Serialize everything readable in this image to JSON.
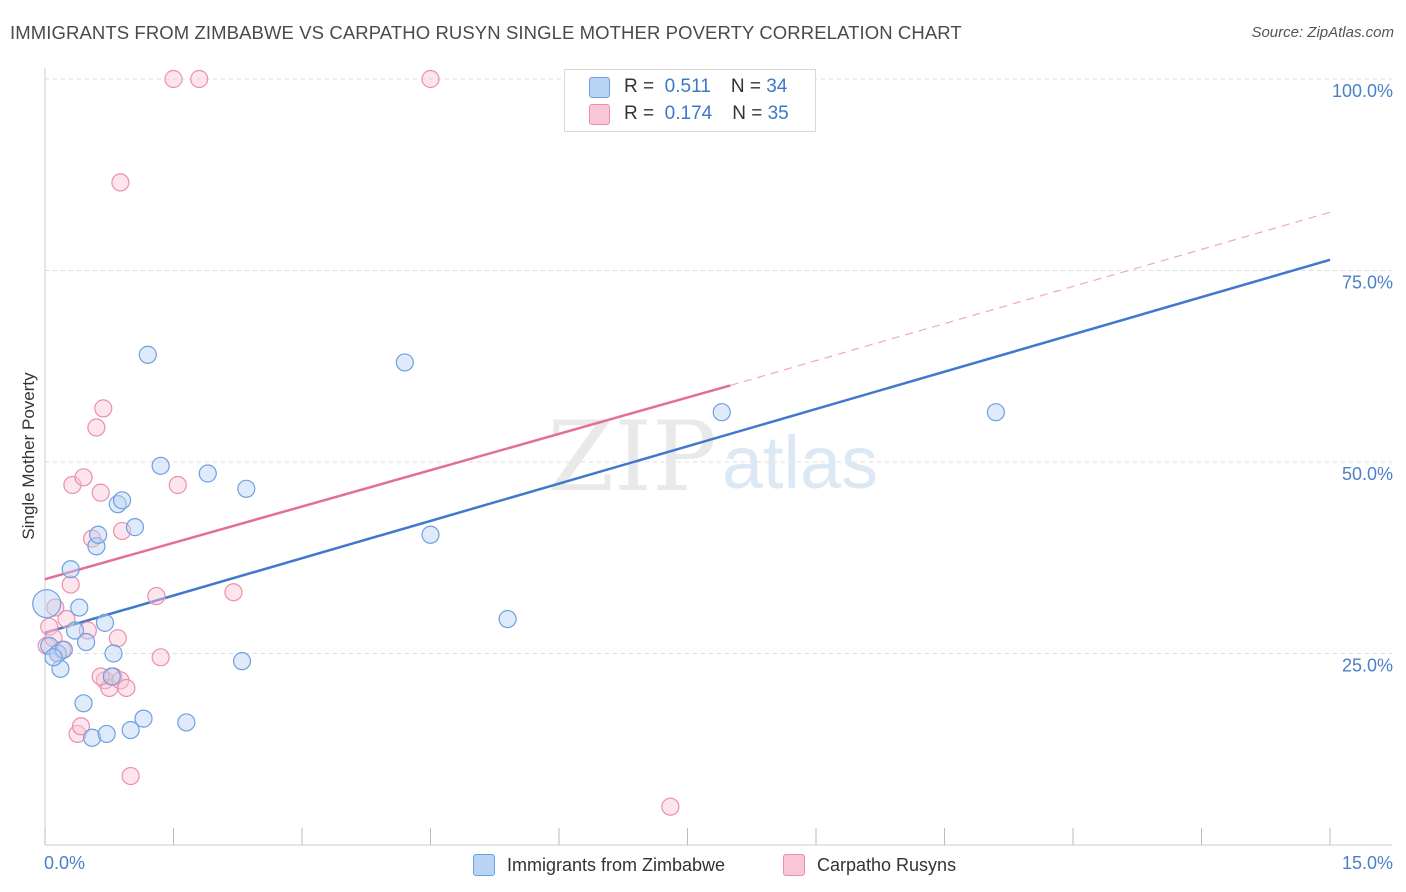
{
  "title": "IMMIGRANTS FROM ZIMBABWE VS CARPATHO RUSYN SINGLE MOTHER POVERTY CORRELATION CHART",
  "source": "Source: ZipAtlas.com",
  "watermark": {
    "zip": "ZIP",
    "atlas": "atlas"
  },
  "legend": {
    "r_label": "R =",
    "n_label": "N =",
    "series": [
      {
        "name": "Immigrants from Zimbabwe",
        "r": "0.511",
        "n": "34",
        "fill": "#b8d3f4",
        "stroke": "#6fa0df"
      },
      {
        "name": "Carpatho Rusyns",
        "r": "0.174",
        "n": "35",
        "fill": "#f8c6d4",
        "stroke": "#ec8fab"
      }
    ]
  },
  "colors": {
    "blue_line": "#3f78cc",
    "pink_line": "#e26f96",
    "axis_text": "#4a7fc9",
    "grid": "#dddddd"
  },
  "chart_data": {
    "type": "scatter",
    "title": "IMMIGRANTS FROM ZIMBABWE VS CARPATHO RUSYN SINGLE MOTHER POVERTY CORRELATION CHART",
    "xlabel": "",
    "ylabel": "Single Mother Poverty",
    "xlim": [
      0,
      15
    ],
    "ylim": [
      0,
      100
    ],
    "x_tick_labels": [
      "0.0%",
      "15.0%"
    ],
    "y_ticks": [
      25,
      50,
      75,
      100
    ],
    "y_tick_labels": [
      "25.0%",
      "50.0%",
      "75.0%",
      "100.0%"
    ],
    "grid": true,
    "series": [
      {
        "name": "Immigrants from Zimbabwe",
        "r": 0.511,
        "n": 34,
        "points": [
          [
            0.02,
            31.5
          ],
          [
            0.05,
            26.0
          ],
          [
            0.15,
            25.0
          ],
          [
            0.18,
            23.0
          ],
          [
            0.22,
            25.5
          ],
          [
            0.3,
            36.0
          ],
          [
            0.35,
            28.0
          ],
          [
            0.4,
            31.0
          ],
          [
            0.45,
            18.5
          ],
          [
            0.48,
            26.5
          ],
          [
            0.55,
            14.0
          ],
          [
            0.6,
            39.0
          ],
          [
            0.62,
            40.5
          ],
          [
            0.7,
            29.0
          ],
          [
            0.72,
            14.5
          ],
          [
            0.78,
            22.0
          ],
          [
            0.8,
            25.0
          ],
          [
            0.85,
            44.5
          ],
          [
            0.9,
            45.0
          ],
          [
            1.0,
            15.0
          ],
          [
            1.05,
            41.5
          ],
          [
            1.15,
            16.5
          ],
          [
            1.35,
            49.5
          ],
          [
            1.65,
            16.0
          ],
          [
            1.9,
            48.5
          ],
          [
            2.3,
            24.0
          ],
          [
            2.35,
            46.5
          ],
          [
            4.5,
            40.5
          ],
          [
            5.4,
            29.5
          ],
          [
            7.9,
            56.5
          ],
          [
            11.1,
            56.5
          ],
          [
            1.2,
            64.0
          ],
          [
            4.2,
            63.0
          ],
          [
            0.1,
            24.5
          ]
        ],
        "trend": {
          "x0": 0,
          "y0": 27.7,
          "x1": 15,
          "y1": 76.4
        }
      },
      {
        "name": "Carpatho Rusyns",
        "r": 0.174,
        "n": 35,
        "points": [
          [
            0.02,
            26.0
          ],
          [
            0.05,
            28.5
          ],
          [
            0.1,
            27.0
          ],
          [
            0.15,
            25.0
          ],
          [
            0.2,
            25.5
          ],
          [
            0.25,
            29.5
          ],
          [
            0.3,
            34.0
          ],
          [
            0.32,
            47.0
          ],
          [
            0.38,
            14.5
          ],
          [
            0.42,
            15.5
          ],
          [
            0.45,
            48.0
          ],
          [
            0.5,
            28.0
          ],
          [
            0.55,
            40.0
          ],
          [
            0.6,
            54.5
          ],
          [
            0.65,
            46.0
          ],
          [
            0.68,
            57.0
          ],
          [
            0.7,
            21.5
          ],
          [
            0.75,
            20.5
          ],
          [
            0.8,
            22.0
          ],
          [
            0.85,
            27.0
          ],
          [
            0.88,
            21.5
          ],
          [
            0.9,
            41.0
          ],
          [
            0.95,
            20.5
          ],
          [
            1.0,
            9.0
          ],
          [
            1.3,
            32.5
          ],
          [
            1.35,
            24.5
          ],
          [
            1.55,
            47.0
          ],
          [
            2.2,
            33.0
          ],
          [
            7.3,
            5.0
          ],
          [
            0.88,
            86.5
          ],
          [
            1.5,
            100.0
          ],
          [
            1.8,
            100.0
          ],
          [
            4.5,
            100.0
          ],
          [
            0.65,
            22.0
          ],
          [
            0.12,
            31.0
          ]
        ],
        "trend": {
          "x0": 0,
          "y0": 34.7,
          "x1": 8.0,
          "y1": 60.0
        },
        "trend_extension": {
          "x0": 8.0,
          "y0": 60.0,
          "x1": 15,
          "y1": 82.6
        }
      }
    ]
  }
}
